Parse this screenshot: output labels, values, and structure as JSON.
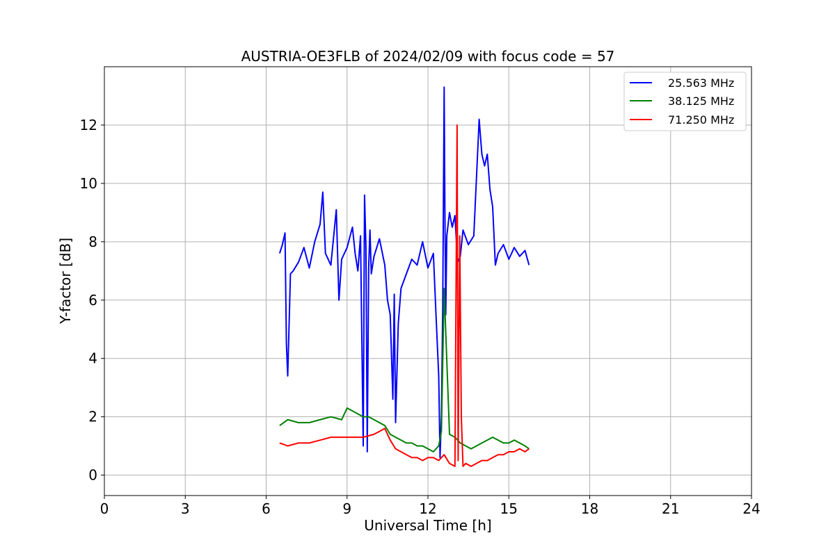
{
  "chart_data": {
    "type": "line",
    "title": "AUSTRIA-OE3FLB of 2024/02/09 with focus code = 57",
    "xlabel": "Universal Time [h]",
    "ylabel": "Y-factor [dB]",
    "xlim": [
      0,
      24
    ],
    "ylim": [
      -0.7,
      14.0
    ],
    "xticks": [
      0,
      3,
      6,
      9,
      12,
      15,
      18,
      21,
      24
    ],
    "yticks": [
      0,
      2,
      4,
      6,
      8,
      10,
      12
    ],
    "grid": true,
    "legend_position": "top-right",
    "series": [
      {
        "name": "25.563 MHz",
        "color": "#0000ff",
        "x": [
          6.5,
          6.6,
          6.7,
          6.75,
          6.8,
          6.9,
          7.0,
          7.2,
          7.4,
          7.6,
          7.8,
          8.0,
          8.1,
          8.2,
          8.4,
          8.6,
          8.7,
          8.8,
          9.0,
          9.2,
          9.3,
          9.4,
          9.5,
          9.6,
          9.65,
          9.7,
          9.75,
          9.8,
          9.85,
          9.9,
          10.0,
          10.2,
          10.4,
          10.5,
          10.6,
          10.7,
          10.75,
          10.8,
          10.9,
          11.0,
          11.2,
          11.4,
          11.6,
          11.8,
          12.0,
          12.2,
          12.3,
          12.4,
          12.45,
          12.5,
          12.55,
          12.6,
          12.63,
          12.66,
          12.7,
          12.8,
          12.9,
          13.0,
          13.1,
          13.2,
          13.3,
          13.5,
          13.7,
          13.85,
          13.9,
          14.0,
          14.1,
          14.2,
          14.3,
          14.4,
          14.5,
          14.6,
          14.8,
          15.0,
          15.2,
          15.4,
          15.6,
          15.75
        ],
        "values": [
          7.6,
          7.9,
          8.3,
          4.5,
          3.4,
          6.9,
          7.0,
          7.3,
          7.8,
          7.1,
          8.0,
          8.6,
          9.7,
          7.6,
          7.2,
          9.1,
          6.0,
          7.4,
          7.8,
          8.5,
          7.6,
          7.0,
          8.2,
          1.0,
          9.6,
          7.8,
          0.8,
          7.1,
          8.4,
          6.9,
          7.5,
          8.1,
          7.2,
          6.0,
          5.5,
          2.6,
          6.2,
          1.8,
          5.2,
          6.4,
          6.9,
          7.4,
          7.2,
          8.0,
          7.1,
          7.6,
          5.5,
          3.4,
          0.6,
          2.1,
          5.8,
          13.3,
          9.0,
          5.5,
          8.2,
          9.0,
          8.5,
          8.9,
          7.3,
          7.5,
          8.4,
          7.9,
          8.2,
          11.2,
          12.2,
          11.0,
          10.6,
          11.0,
          9.8,
          9.2,
          7.2,
          7.6,
          7.9,
          7.4,
          7.8,
          7.5,
          7.7,
          7.2
        ]
      },
      {
        "name": "38.125 MHz",
        "color": "#008000",
        "x": [
          6.5,
          6.8,
          7.2,
          7.6,
          8.0,
          8.4,
          8.8,
          9.0,
          9.2,
          9.4,
          9.6,
          9.8,
          10.0,
          10.2,
          10.4,
          10.6,
          10.8,
          11.0,
          11.2,
          11.4,
          11.6,
          11.8,
          12.0,
          12.2,
          12.4,
          12.5,
          12.6,
          12.8,
          13.0,
          13.2,
          13.4,
          13.6,
          13.8,
          14.0,
          14.2,
          14.4,
          14.6,
          14.8,
          15.0,
          15.2,
          15.4,
          15.6,
          15.75
        ],
        "values": [
          1.7,
          1.9,
          1.8,
          1.8,
          1.9,
          2.0,
          1.9,
          2.3,
          2.2,
          2.1,
          2.0,
          2.0,
          1.9,
          1.8,
          1.7,
          1.4,
          1.3,
          1.2,
          1.1,
          1.1,
          1.0,
          1.0,
          0.9,
          0.8,
          1.0,
          1.5,
          6.4,
          1.4,
          1.3,
          1.1,
          1.0,
          0.9,
          1.0,
          1.1,
          1.2,
          1.3,
          1.2,
          1.1,
          1.1,
          1.2,
          1.1,
          1.0,
          0.9
        ]
      },
      {
        "name": "71.250 MHz",
        "color": "#ff0000",
        "x": [
          6.5,
          6.8,
          7.2,
          7.6,
          8.0,
          8.4,
          8.8,
          9.2,
          9.6,
          10.0,
          10.2,
          10.4,
          10.6,
          10.8,
          11.0,
          11.2,
          11.4,
          11.6,
          11.8,
          12.0,
          12.2,
          12.4,
          12.6,
          12.8,
          13.0,
          13.08,
          13.12,
          13.18,
          13.24,
          13.3,
          13.4,
          13.6,
          13.8,
          14.0,
          14.2,
          14.4,
          14.6,
          14.8,
          15.0,
          15.2,
          15.4,
          15.6,
          15.75
        ],
        "values": [
          1.1,
          1.0,
          1.1,
          1.1,
          1.2,
          1.3,
          1.3,
          1.3,
          1.3,
          1.4,
          1.5,
          1.6,
          1.2,
          0.9,
          0.8,
          0.7,
          0.6,
          0.6,
          0.5,
          0.6,
          0.6,
          0.5,
          0.7,
          0.4,
          0.3,
          12.0,
          0.5,
          8.2,
          2.0,
          0.3,
          0.4,
          0.3,
          0.4,
          0.5,
          0.5,
          0.6,
          0.7,
          0.7,
          0.8,
          0.8,
          0.9,
          0.8,
          0.9
        ]
      }
    ]
  }
}
